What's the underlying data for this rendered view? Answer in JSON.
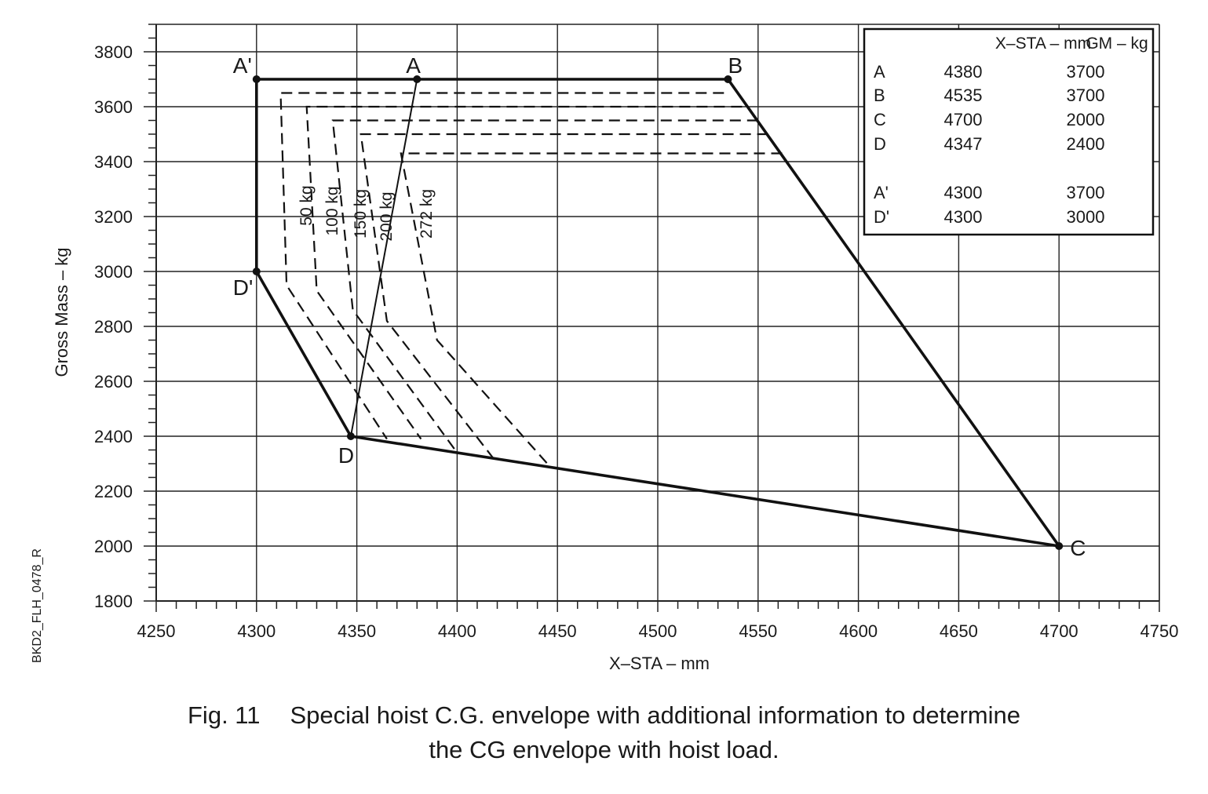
{
  "chart_data": {
    "type": "line",
    "xlabel": "X–STA – mm",
    "ylabel": "Gross Mass – kg",
    "xlim": [
      4250,
      4750
    ],
    "ylim": [
      1800,
      3900
    ],
    "x_ticks": [
      4250,
      4300,
      4350,
      4400,
      4450,
      4500,
      4550,
      4600,
      4650,
      4700,
      4750
    ],
    "y_ticks": [
      1800,
      2000,
      2200,
      2400,
      2600,
      2800,
      3000,
      3200,
      3400,
      3600,
      3800
    ],
    "x_tick_labels": [
      "4250",
      "4300",
      "4350",
      "4400",
      "4450",
      "4500",
      "4550",
      "4600",
      "4650",
      "4700",
      "4750"
    ],
    "y_tick_labels": [
      "1800",
      "2000",
      "2200",
      "2400",
      "2600",
      "2800",
      "3000",
      "3200",
      "3400",
      "3600",
      "3800"
    ],
    "grid": true,
    "envelope": {
      "points": [
        {
          "label": "A'",
          "x": 4300,
          "y": 3700
        },
        {
          "label": "B",
          "x": 4535,
          "y": 3700
        },
        {
          "label": "C",
          "x": 4700,
          "y": 2000
        },
        {
          "label": "D",
          "x": 4347,
          "y": 2400
        },
        {
          "label": "D'",
          "x": 4300,
          "y": 3000
        }
      ]
    },
    "line_AD": [
      {
        "x": 4380,
        "y": 3700
      },
      {
        "x": 4347,
        "y": 2400
      }
    ],
    "point_A": {
      "label": "A",
      "x": 4380,
      "y": 3700
    },
    "hoist_series": [
      {
        "name": "50 kg",
        "points": [
          [
            4312,
            3650
          ],
          [
            4533,
            3650
          ],
          [
            4533,
            3650
          ]
        ],
        "outline": [
          [
            4533,
            3650
          ],
          [
            4312,
            3650
          ],
          [
            4315,
            2950
          ],
          [
            4365,
            2390
          ]
        ]
      },
      {
        "name": "100 kg",
        "points": [],
        "outline": [
          [
            4542,
            3600
          ],
          [
            4325,
            3600
          ],
          [
            4330,
            2930
          ],
          [
            4382,
            2390
          ]
        ]
      },
      {
        "name": "150 kg",
        "points": [],
        "outline": [
          [
            4550,
            3550
          ],
          [
            4338,
            3550
          ],
          [
            4348,
            2860
          ],
          [
            4400,
            2340
          ]
        ]
      },
      {
        "name": "200 kg",
        "points": [],
        "outline": [
          [
            4555,
            3500
          ],
          [
            4352,
            3500
          ],
          [
            4365,
            2820
          ],
          [
            4418,
            2320
          ]
        ]
      },
      {
        "name": "272 kg",
        "points": [],
        "outline": [
          [
            4562,
            3430
          ],
          [
            4372,
            3430
          ],
          [
            4390,
            2750
          ],
          [
            4445,
            2300
          ]
        ]
      }
    ],
    "table": {
      "headers": [
        "",
        "X–STA – mm",
        "GM – kg"
      ],
      "rows": [
        [
          "A",
          "4380",
          "3700"
        ],
        [
          "B",
          "4535",
          "3700"
        ],
        [
          "C",
          "4700",
          "2000"
        ],
        [
          "D",
          "4347",
          "2400"
        ],
        [
          "A'",
          "4300",
          "3700"
        ],
        [
          "D'",
          "4300",
          "3000"
        ]
      ]
    },
    "side_code": "BKD2_FLH_0478_R"
  },
  "caption": {
    "number": "Fig. 11",
    "line1": "Special hoist C.G. envelope with additional information to determine",
    "line2": "the CG envelope with hoist load."
  }
}
